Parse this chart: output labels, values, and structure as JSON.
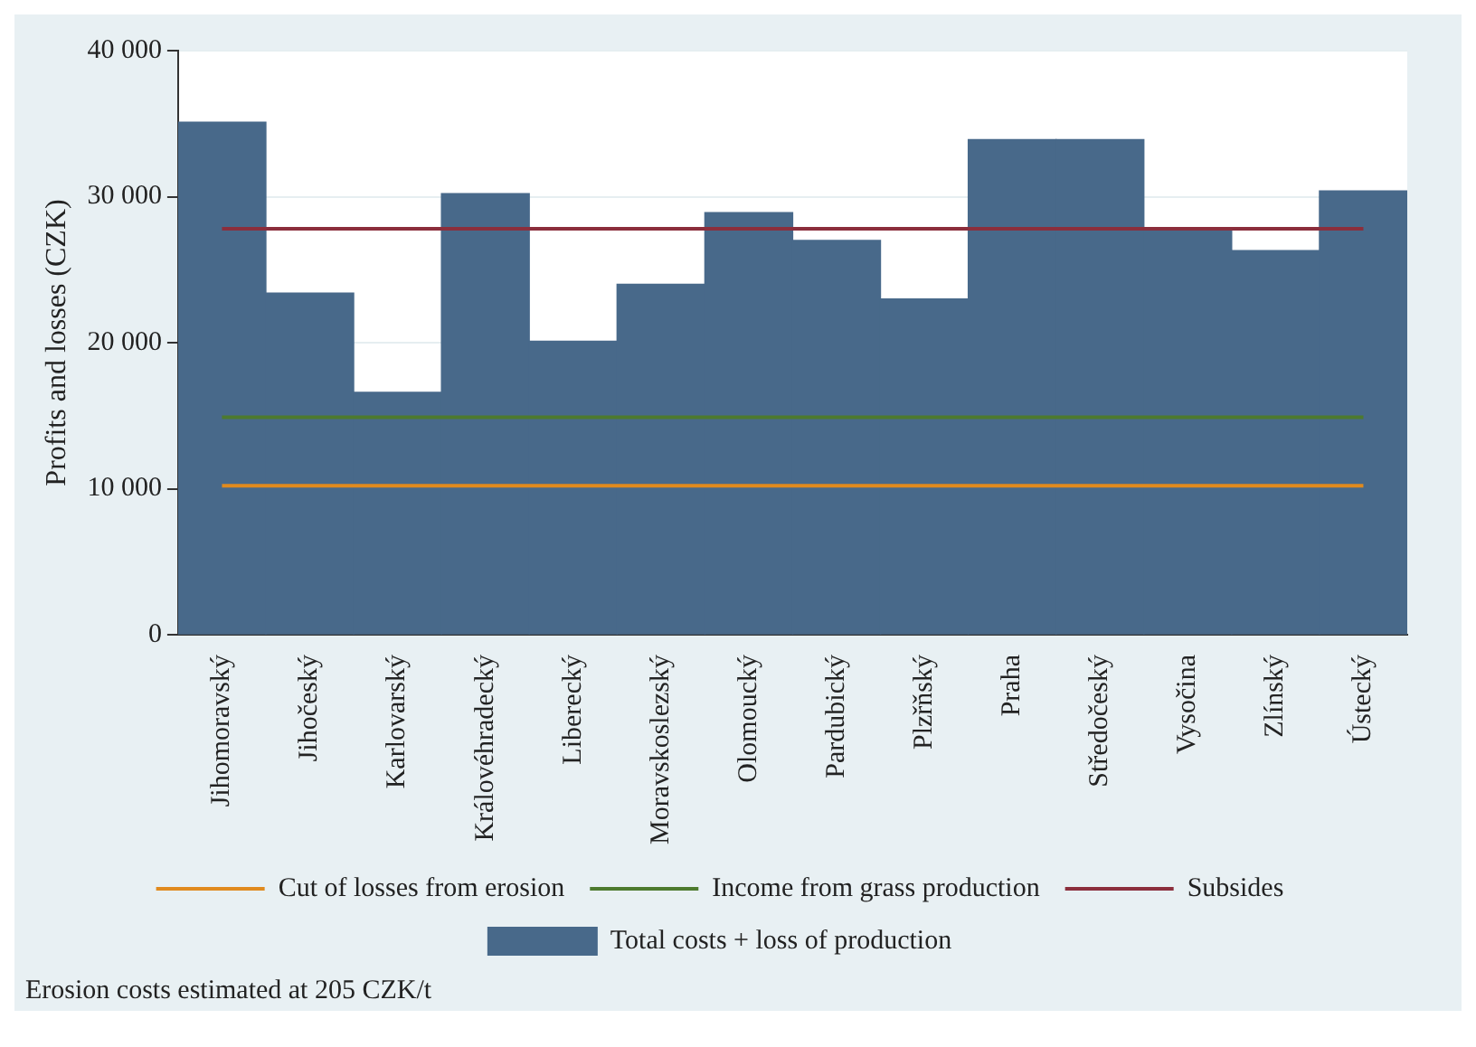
{
  "chart_data": {
    "type": "bar",
    "ylabel": "Profits and losses (CZK)",
    "categories": [
      "Jihomoravský",
      "Jihočeský",
      "Karlovarský",
      "Královéhradecký",
      "Liberecký",
      "Moravskoslezský",
      "Olomoucký",
      "Pardubický",
      "Plzřňský",
      "Praha",
      "Středočeský",
      "Vysočina",
      "Zlínský",
      "Ústecký"
    ],
    "series": [
      {
        "name": "Cut of losses from erosion",
        "type": "line",
        "color": "#e08a1e",
        "values": [
          10200,
          10200,
          10200,
          10200,
          10200,
          10200,
          10200,
          10200,
          10200,
          10200,
          10200,
          10200,
          10200,
          10200
        ]
      },
      {
        "name": "Income from grass production",
        "type": "line",
        "color": "#4d7a2e",
        "values": [
          14900,
          14900,
          14900,
          14900,
          14900,
          14900,
          14900,
          14900,
          14900,
          14900,
          14900,
          14900,
          14900,
          14900
        ]
      },
      {
        "name": "Subsides",
        "type": "line",
        "color": "#8b2e3c",
        "values": [
          27800,
          27800,
          27800,
          27800,
          27800,
          27800,
          27800,
          27800,
          27800,
          27800,
          27800,
          27800,
          27800,
          27800
        ]
      },
      {
        "name": "Total costs + loss of production",
        "color": "#48698a",
        "values": [
          35100,
          23400,
          16600,
          30200,
          20100,
          24000,
          28900,
          27000,
          23000,
          33900,
          33900,
          27800,
          26300,
          30400
        ]
      }
    ],
    "ylim": [
      0,
      40000
    ],
    "yticks": [
      {
        "value": 0,
        "label": "0"
      },
      {
        "value": 10000,
        "label": "10 000"
      },
      {
        "value": 20000,
        "label": "20 000"
      },
      {
        "value": 30000,
        "label": "30 000"
      },
      {
        "value": 40000,
        "label": "40 000"
      }
    ],
    "grid": "y",
    "legend": "bottom",
    "marker": "none",
    "annotations": [
      "Erosion costs estimated at 205 CZK/t"
    ]
  }
}
